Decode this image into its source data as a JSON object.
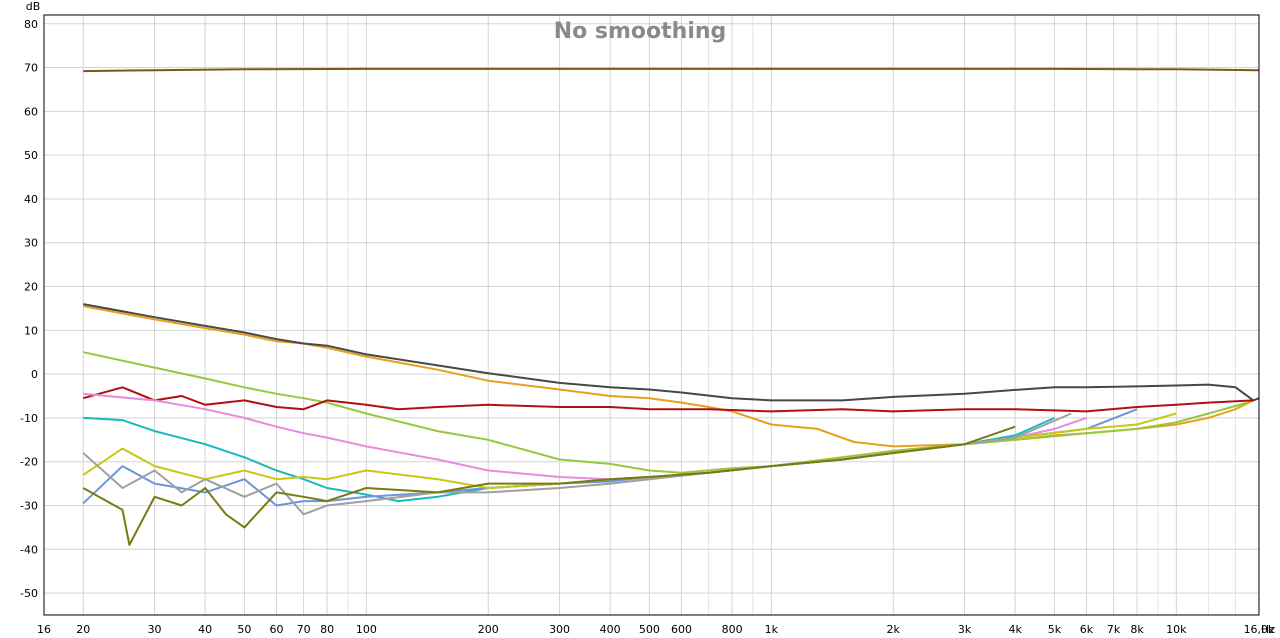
{
  "chart_data": {
    "type": "line",
    "title": "No smoothing",
    "ylabel": "dB",
    "xunit": "Hz",
    "xscale": "log",
    "xlim": [
      16,
      16000
    ],
    "ylim": [
      -55,
      82
    ],
    "grid": true,
    "y_ticks": [
      80,
      70,
      60,
      50,
      40,
      30,
      20,
      10,
      0,
      -10,
      -20,
      -30,
      -40,
      -50
    ],
    "x_ticks": [
      {
        "v": 16,
        "label": "16"
      },
      {
        "v": 20,
        "label": "20"
      },
      {
        "v": 30,
        "label": "30"
      },
      {
        "v": 40,
        "label": "40"
      },
      {
        "v": 50,
        "label": "50"
      },
      {
        "v": 60,
        "label": "60"
      },
      {
        "v": 70,
        "label": "70"
      },
      {
        "v": 80,
        "label": "80"
      },
      {
        "v": 100,
        "label": "100"
      },
      {
        "v": 200,
        "label": "200"
      },
      {
        "v": 300,
        "label": "300"
      },
      {
        "v": 400,
        "label": "400"
      },
      {
        "v": 500,
        "label": "500"
      },
      {
        "v": 600,
        "label": "600"
      },
      {
        "v": 800,
        "label": "800"
      },
      {
        "v": 1000,
        "label": "1k"
      },
      {
        "v": 2000,
        "label": "2k"
      },
      {
        "v": 3000,
        "label": "3k"
      },
      {
        "v": 4000,
        "label": "4k"
      },
      {
        "v": 5000,
        "label": "5k"
      },
      {
        "v": 6000,
        "label": "6k"
      },
      {
        "v": 7000,
        "label": "7k"
      },
      {
        "v": 8000,
        "label": "8k"
      },
      {
        "v": 10000,
        "label": "10k"
      },
      {
        "v": 16000,
        "label": "16,0k"
      }
    ],
    "x_minor_ticks": [
      90,
      700,
      900,
      9000,
      12000,
      14000
    ],
    "series": [
      {
        "color": "#7a5a14",
        "x": [
          20,
          30,
          50,
          100,
          200,
          500,
          1000,
          2000,
          5000,
          10000,
          16000
        ],
        "y": [
          69.2,
          69.4,
          69.6,
          69.7,
          69.7,
          69.7,
          69.7,
          69.7,
          69.7,
          69.6,
          69.4
        ]
      },
      {
        "color": "#e89e1e",
        "x": [
          20,
          30,
          40,
          50,
          60,
          70,
          80,
          100,
          150,
          200,
          300,
          400,
          500,
          600,
          700,
          800,
          1000,
          1300,
          1600,
          2000,
          3000,
          4000,
          5000,
          6000,
          8000,
          10000,
          12000,
          14000,
          15500
        ],
        "y": [
          15.5,
          12.5,
          10.5,
          9,
          7.5,
          7,
          6,
          4,
          1,
          -1.5,
          -3.5,
          -5,
          -5.5,
          -6.5,
          -7.5,
          -8.5,
          -11.5,
          -12.5,
          -15.5,
          -16.5,
          -16,
          -15,
          -14,
          -13.5,
          -12.5,
          -11.5,
          -10,
          -8,
          -6
        ]
      },
      {
        "color": "#484848",
        "x": [
          20,
          30,
          40,
          50,
          60,
          70,
          80,
          100,
          150,
          200,
          300,
          400,
          500,
          600,
          800,
          1000,
          1500,
          2000,
          3000,
          4000,
          5000,
          6000,
          8000,
          10000,
          12000,
          14000,
          15500,
          16000
        ],
        "y": [
          16,
          13,
          11,
          9.5,
          8,
          7,
          6.5,
          4.5,
          2,
          0.2,
          -2,
          -3,
          -3.5,
          -4.2,
          -5.5,
          -6,
          -6,
          -5.2,
          -4.5,
          -3.6,
          -3,
          -3,
          -2.8,
          -2.6,
          -2.4,
          -3,
          -6,
          -5.5
        ]
      },
      {
        "color": "#96c83c",
        "x": [
          20,
          30,
          40,
          50,
          60,
          70,
          80,
          100,
          150,
          200,
          300,
          400,
          500,
          600,
          800,
          1000,
          2000,
          4000,
          6000,
          8000,
          10000,
          12000,
          15000
        ],
        "y": [
          5,
          1.5,
          -1,
          -3,
          -4.5,
          -5.5,
          -6.5,
          -9,
          -13,
          -15,
          -19.5,
          -20.5,
          -22,
          -22.5,
          -21.5,
          -21,
          -17.5,
          -15,
          -13.5,
          -12.5,
          -11,
          -9,
          -6.5
        ]
      },
      {
        "color": "#b01010",
        "x": [
          20,
          25,
          30,
          35,
          40,
          50,
          60,
          70,
          80,
          100,
          120,
          150,
          200,
          300,
          400,
          500,
          700,
          1000,
          1500,
          2000,
          3000,
          4000,
          6000,
          8000,
          10000,
          12000,
          15500
        ],
        "y": [
          -5.5,
          -3,
          -6,
          -5,
          -7,
          -6,
          -7.5,
          -8,
          -6,
          -7,
          -8,
          -7.5,
          -7,
          -7.5,
          -7.5,
          -8,
          -8,
          -8.5,
          -8,
          -8.5,
          -8,
          -8,
          -8.5,
          -7.5,
          -7,
          -6.5,
          -6
        ]
      },
      {
        "color": "#e88ae0",
        "x": [
          20,
          30,
          40,
          50,
          60,
          70,
          80,
          100,
          150,
          200,
          300,
          400,
          500,
          700,
          1000,
          1500,
          2000,
          3000,
          4000,
          5000,
          6000
        ],
        "y": [
          -4.5,
          -6,
          -8,
          -10,
          -12,
          -13.5,
          -14.5,
          -16.5,
          -19.5,
          -22,
          -23.5,
          -24,
          -23.5,
          -22.5,
          -21,
          -19.5,
          -18,
          -16,
          -14.5,
          -12.5,
          -10
        ]
      },
      {
        "color": "#1ab8c0",
        "x": [
          20,
          25,
          30,
          40,
          50,
          60,
          70,
          80,
          100,
          120,
          150,
          200,
          300,
          400,
          500,
          700,
          1000,
          1500,
          2000,
          3000,
          4000,
          5000
        ],
        "y": [
          -10,
          -10.5,
          -13,
          -16,
          -19,
          -22,
          -24,
          -26,
          -27.5,
          -29,
          -28,
          -26,
          -25,
          -24,
          -23.5,
          -22.5,
          -21,
          -19.5,
          -18,
          -16,
          -14,
          -10
        ]
      },
      {
        "color": "#6a96dc",
        "x": [
          20,
          25,
          30,
          40,
          50,
          60,
          70,
          80,
          100,
          150,
          200,
          300,
          400,
          500,
          700,
          1000,
          1500,
          2000,
          3000,
          4000,
          6000,
          8000
        ],
        "y": [
          -29.5,
          -21,
          -25,
          -27,
          -24,
          -30,
          -29,
          -29,
          -28,
          -27,
          -26,
          -25,
          -24.5,
          -23.5,
          -22.5,
          -21,
          -19.5,
          -18,
          -16,
          -14.5,
          -12.5,
          -8
        ]
      },
      {
        "color": "#c8c814",
        "x": [
          20,
          25,
          30,
          40,
          50,
          60,
          70,
          80,
          100,
          150,
          200,
          300,
          400,
          500,
          700,
          1000,
          1500,
          2000,
          3000,
          4000,
          6000,
          8000,
          10000
        ],
        "y": [
          -23,
          -17,
          -21,
          -24,
          -22,
          -24,
          -23.5,
          -24,
          -22,
          -24,
          -26,
          -25,
          -24,
          -23.5,
          -22.5,
          -21,
          -19.5,
          -18,
          -16,
          -14.5,
          -12.5,
          -11.5,
          -9
        ]
      },
      {
        "color": "#a0a0a0",
        "x": [
          20,
          25,
          30,
          35,
          40,
          50,
          60,
          70,
          80,
          100,
          150,
          200,
          300,
          400,
          500,
          700,
          1000,
          1500,
          2000,
          3000,
          4000,
          5500
        ],
        "y": [
          -18,
          -26,
          -22,
          -27,
          -24,
          -28,
          -25,
          -32,
          -30,
          -29,
          -27,
          -27,
          -26,
          -25,
          -24,
          -22.5,
          -21,
          -19.5,
          -18,
          -16,
          -14.5,
          -9
        ]
      },
      {
        "color": "#7a7a14",
        "x": [
          20,
          25,
          26,
          30,
          35,
          40,
          45,
          50,
          60,
          70,
          80,
          100,
          150,
          200,
          300,
          400,
          500,
          700,
          1000,
          1500,
          2000,
          3000,
          4000
        ],
        "y": [
          -26,
          -31,
          -39,
          -28,
          -30,
          -26,
          -32,
          -35,
          -27,
          -28,
          -29,
          -26,
          -27,
          -25,
          -25,
          -24,
          -23.5,
          -22.5,
          -21,
          -19.5,
          -18,
          -16,
          -12
        ]
      }
    ]
  }
}
